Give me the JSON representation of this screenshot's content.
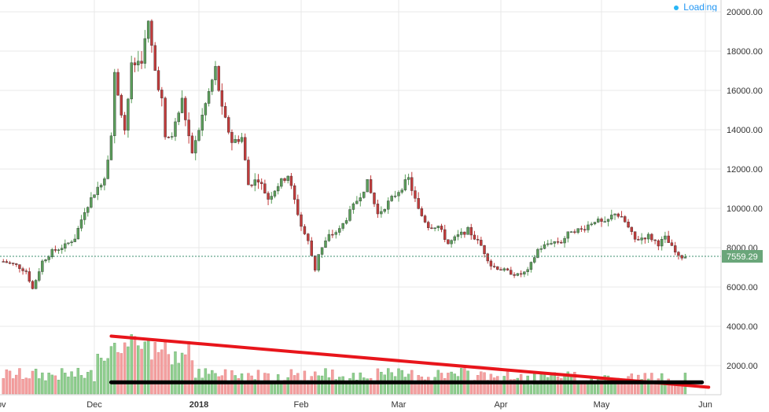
{
  "status": {
    "loading_label": "Loading"
  },
  "chart_data": {
    "type": "candlestick",
    "y_ticks": [
      "20000.00",
      "18000.00",
      "16000.00",
      "14000.00",
      "12000.00",
      "10000.00",
      "8000.00",
      "6000.00",
      "4000.00",
      "2000.00"
    ],
    "x_ticks": [
      "Dec",
      "2018",
      "Feb",
      "Mar",
      "Apr",
      "May",
      "Jun"
    ],
    "ylim": [
      700,
      20500
    ],
    "last_price_label": "7559.29",
    "last_price": 7559.29,
    "colors": {
      "up": "#5a9e5a",
      "down": "#c23b3b",
      "up_volume": "#8fcf8f",
      "down_volume": "#f4a0a0",
      "price_line": "#3c8f6f",
      "grid": "#e8e8e8",
      "trend_red": "#e8151b",
      "trend_black": "#000000"
    },
    "price_path": [
      [
        "Nov 3",
        7300
      ],
      [
        "Nov 7",
        7100
      ],
      [
        "Nov 10",
        6800
      ],
      [
        "Nov 12",
        5900
      ],
      [
        "Nov 15",
        7300
      ],
      [
        "Nov 18",
        7800
      ],
      [
        "Nov 22",
        8100
      ],
      [
        "Nov 25",
        8500
      ],
      [
        "Nov 28",
        9900
      ],
      [
        "Dec 1",
        10800
      ],
      [
        "Dec 4",
        11600
      ],
      [
        "Dec 6",
        13700
      ],
      [
        "Dec 7",
        16800
      ],
      [
        "Dec 10",
        14000
      ],
      [
        "Dec 12",
        17200
      ],
      [
        "Dec 15",
        17600
      ],
      [
        "Dec 17",
        19400
      ],
      [
        "Dec 19",
        17000
      ],
      [
        "Dec 21",
        15500
      ],
      [
        "Dec 22",
        13500
      ],
      [
        "Dec 24",
        13700
      ],
      [
        "Dec 27",
        15500
      ],
      [
        "Dec 30",
        12700
      ],
      [
        "Jan 2",
        14700
      ],
      [
        "Jan 6",
        17100
      ],
      [
        "Jan 8",
        15000
      ],
      [
        "Jan 11",
        13400
      ],
      [
        "Jan 14",
        13600
      ],
      [
        "Jan 16",
        11200
      ],
      [
        "Jan 19",
        11500
      ],
      [
        "Jan 22",
        10500
      ],
      [
        "Jan 25",
        11200
      ],
      [
        "Jan 28",
        11700
      ],
      [
        "Feb 1",
        9100
      ],
      [
        "Feb 3",
        8300
      ],
      [
        "Feb 5",
        6900
      ],
      [
        "Feb 6",
        7700
      ],
      [
        "Feb 9",
        8600
      ],
      [
        "Feb 12",
        8900
      ],
      [
        "Feb 16",
        10100
      ],
      [
        "Feb 20",
        11300
      ],
      [
        "Feb 23",
        9700
      ],
      [
        "Feb 26",
        10300
      ],
      [
        "Mar 1",
        10900
      ],
      [
        "Mar 4",
        11500
      ],
      [
        "Mar 7",
        9900
      ],
      [
        "Mar 10",
        9100
      ],
      [
        "Mar 13",
        9100
      ],
      [
        "Mar 16",
        8200
      ],
      [
        "Mar 19",
        8600
      ],
      [
        "Mar 22",
        8900
      ],
      [
        "Mar 26",
        8100
      ],
      [
        "Mar 29",
        7100
      ],
      [
        "Apr 1",
        6900
      ],
      [
        "Apr 6",
        6600
      ],
      [
        "Apr 9",
        6800
      ],
      [
        "Apr 12",
        7900
      ],
      [
        "Apr 16",
        8300
      ],
      [
        "Apr 19",
        8300
      ],
      [
        "Apr 22",
        8900
      ],
      [
        "Apr 25",
        8900
      ],
      [
        "Apr 29",
        9400
      ],
      [
        "May 2",
        9200
      ],
      [
        "May 5",
        9800
      ],
      [
        "May 8",
        9300
      ],
      [
        "May 11",
        8400
      ],
      [
        "May 15",
        8600
      ],
      [
        "May 18",
        8200
      ],
      [
        "May 20",
        8500
      ],
      [
        "May 22",
        8000
      ],
      [
        "May 24",
        7500
      ],
      [
        "May 26",
        7559
      ]
    ],
    "annotations": [
      {
        "name": "volume-downtrend-line",
        "color": "red",
        "from": [
          "Dec 6",
          3500
        ],
        "to": [
          "Jun 2",
          900
        ]
      },
      {
        "name": "volume-support-line",
        "color": "black",
        "from": [
          "Dec 6",
          1150
        ],
        "to": [
          "May 31",
          1150
        ]
      }
    ]
  }
}
